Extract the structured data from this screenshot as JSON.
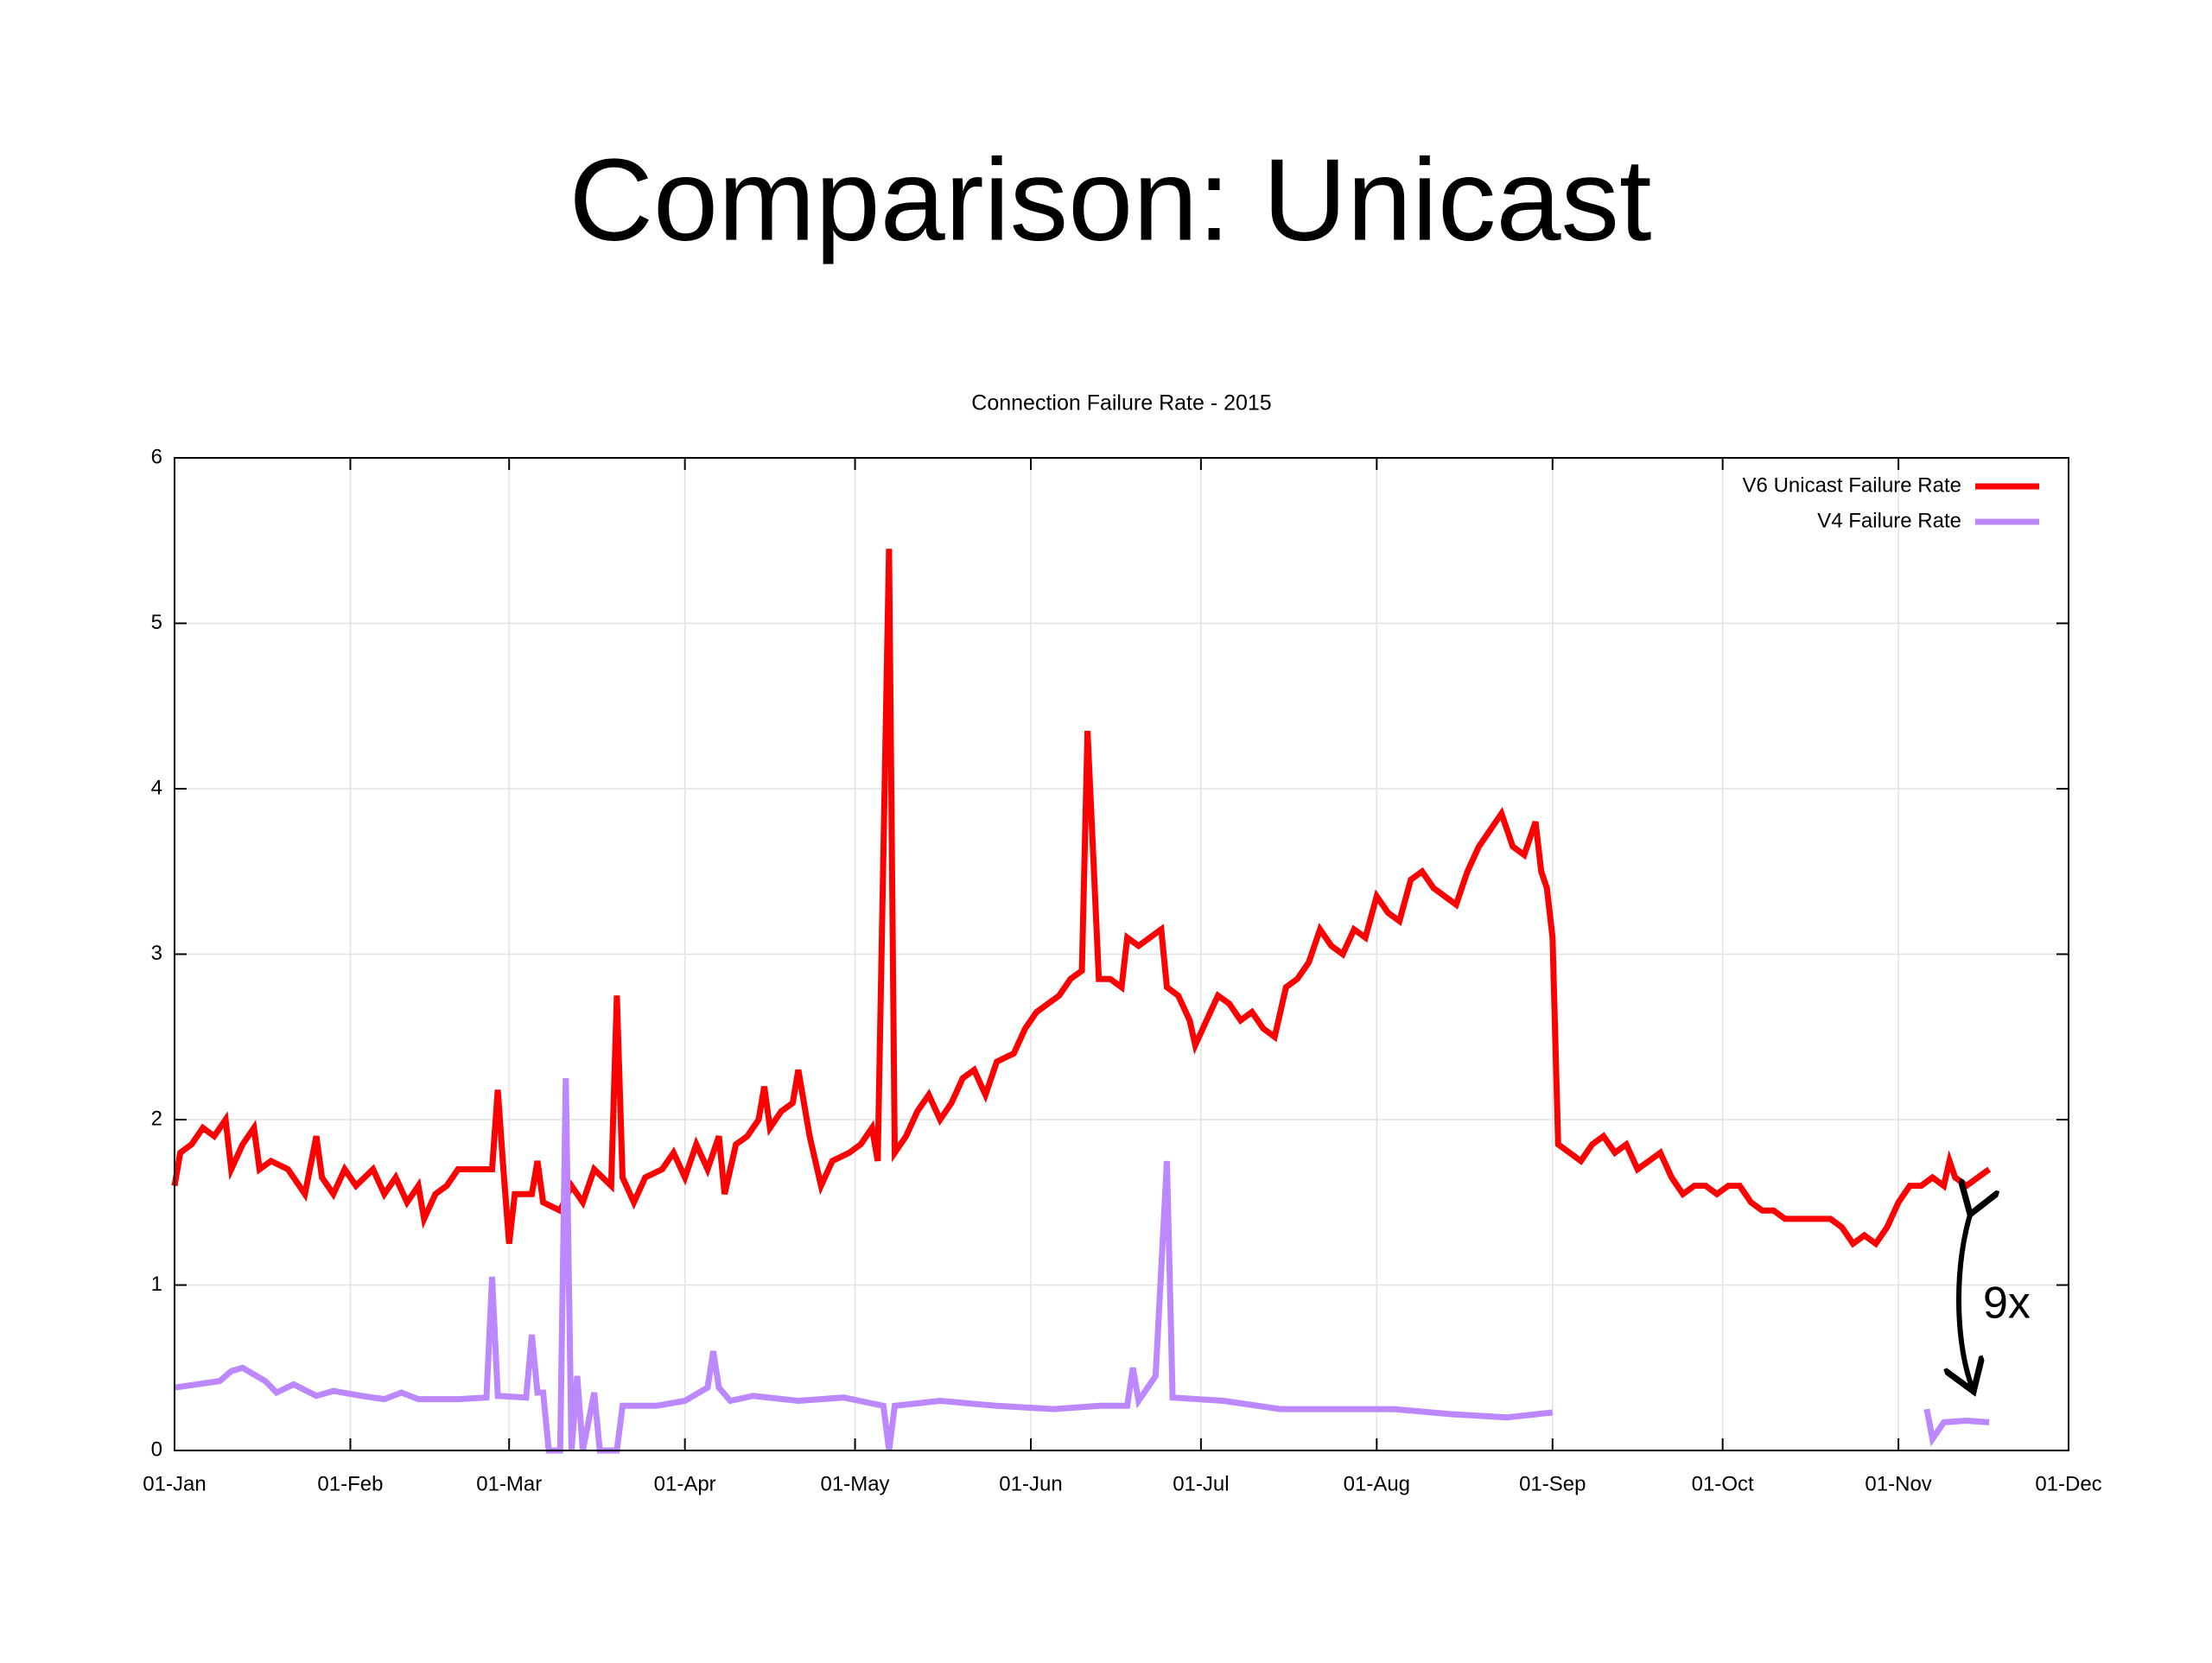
{
  "slide": {
    "title": "Comparison: Unicast"
  },
  "chart_data": {
    "type": "line",
    "title": "Connection Failure Rate - 2015",
    "xlim": [
      0,
      334
    ],
    "xticks": [
      {
        "value": 0,
        "label": "01-Jan"
      },
      {
        "value": 31,
        "label": "01-Feb"
      },
      {
        "value": 59,
        "label": "01-Mar"
      },
      {
        "value": 90,
        "label": "01-Apr"
      },
      {
        "value": 120,
        "label": "01-May"
      },
      {
        "value": 151,
        "label": "01-Jun"
      },
      {
        "value": 181,
        "label": "01-Jul"
      },
      {
        "value": 212,
        "label": "01-Aug"
      },
      {
        "value": 243,
        "label": "01-Sep"
      },
      {
        "value": 273,
        "label": "01-Oct"
      },
      {
        "value": 304,
        "label": "01-Nov"
      },
      {
        "value": 334,
        "label": "01-Dec"
      }
    ],
    "ylim": [
      0,
      6
    ],
    "yticks": [
      0,
      1,
      2,
      3,
      4,
      5,
      6
    ],
    "grid": true,
    "legend": "top-right",
    "annotation": "9x",
    "series": [
      {
        "name": "V6 Unicast Failure Rate",
        "color": "#ff0000",
        "x": [
          0,
          1,
          3,
          5,
          7,
          9,
          10,
          12,
          14,
          15,
          17,
          20,
          22,
          23,
          25,
          26,
          28,
          30,
          32,
          35,
          37,
          39,
          41,
          43,
          44,
          46,
          48,
          50,
          56,
          57,
          58,
          59,
          60,
          63,
          64,
          65,
          68,
          70,
          72,
          74,
          77,
          78,
          79,
          81,
          83,
          86,
          88,
          90,
          92,
          94,
          96,
          97,
          99,
          101,
          103,
          104,
          105,
          107,
          109,
          110,
          112,
          114,
          116,
          119,
          121,
          123,
          124,
          126,
          127,
          129,
          131,
          133,
          135,
          137,
          139,
          141,
          143,
          145,
          148,
          150,
          152,
          154,
          156,
          158,
          160,
          161,
          162,
          163,
          165,
          167,
          168,
          170,
          172,
          174,
          175,
          177,
          179,
          180,
          182,
          184,
          186,
          188,
          190,
          192,
          194,
          196,
          198,
          200,
          202,
          204,
          206,
          208,
          210,
          212,
          214,
          216,
          218,
          220,
          222,
          224,
          226,
          228,
          230,
          232,
          234,
          236,
          238,
          240,
          241,
          242,
          243,
          244,
          246,
          248,
          250,
          252,
          254,
          256,
          258,
          260,
          262,
          264,
          266,
          268,
          270,
          272,
          274,
          276,
          278,
          280,
          282,
          284,
          286,
          288,
          290,
          292,
          294,
          296,
          298,
          300,
          302,
          304,
          306,
          308,
          310,
          312,
          313,
          314,
          316,
          318,
          320
        ],
        "values": [
          1.6,
          1.8,
          1.85,
          1.95,
          1.9,
          2.0,
          1.7,
          1.85,
          1.95,
          1.7,
          1.75,
          1.7,
          1.6,
          1.55,
          1.9,
          1.65,
          1.55,
          1.7,
          1.6,
          1.7,
          1.55,
          1.65,
          1.5,
          1.6,
          1.4,
          1.55,
          1.6,
          1.7,
          1.7,
          2.18,
          1.7,
          1.25,
          1.55,
          1.55,
          1.75,
          1.5,
          1.45,
          1.6,
          1.5,
          1.7,
          1.6,
          2.75,
          1.65,
          1.5,
          1.65,
          1.7,
          1.8,
          1.65,
          1.85,
          1.7,
          1.9,
          1.55,
          1.85,
          1.9,
          2.0,
          2.2,
          1.95,
          2.05,
          2.1,
          2.3,
          1.9,
          1.6,
          1.75,
          1.8,
          1.85,
          1.95,
          1.75,
          5.45,
          1.8,
          1.9,
          2.05,
          2.15,
          2.0,
          2.1,
          2.25,
          2.3,
          2.15,
          2.35,
          2.4,
          2.55,
          2.65,
          2.7,
          2.75,
          2.85,
          2.9,
          4.35,
          3.6,
          2.85,
          2.85,
          2.8,
          3.1,
          3.05,
          3.1,
          3.15,
          2.8,
          2.75,
          2.6,
          2.45,
          2.6,
          2.75,
          2.7,
          2.6,
          2.65,
          2.55,
          2.5,
          2.8,
          2.85,
          2.95,
          3.15,
          3.05,
          3.0,
          3.15,
          3.1,
          3.35,
          3.25,
          3.2,
          3.45,
          3.5,
          3.4,
          3.35,
          3.3,
          3.5,
          3.65,
          3.75,
          3.85,
          3.65,
          3.6,
          3.8,
          3.5,
          3.4,
          3.1,
          1.85,
          1.8,
          1.75,
          1.85,
          1.9,
          1.8,
          1.85,
          1.7,
          1.75,
          1.8,
          1.65,
          1.55,
          1.6,
          1.6,
          1.55,
          1.6,
          1.6,
          1.5,
          1.45,
          1.45,
          1.4,
          1.4,
          1.4,
          1.4,
          1.4,
          1.35,
          1.25,
          1.3,
          1.25,
          1.35,
          1.5,
          1.6,
          1.6,
          1.65,
          1.6,
          1.75,
          1.65,
          1.6,
          1.65,
          1.7
        ]
      },
      {
        "name": "V4 Failure Rate",
        "color": "#bb88ff",
        "x": [
          0,
          8,
          10,
          12,
          16,
          18,
          21,
          25,
          28,
          33,
          37,
          40,
          43,
          50,
          55,
          56,
          57,
          62,
          63,
          64,
          65,
          66,
          68,
          69,
          70,
          71,
          72,
          74,
          75,
          78,
          79,
          85,
          90,
          94,
          95,
          96,
          98,
          102,
          110,
          118,
          125,
          126,
          127,
          135,
          145,
          155,
          163,
          168,
          169,
          170,
          173,
          175,
          176,
          185,
          195,
          205,
          215,
          225,
          235,
          243,
          270,
          309,
          310,
          312,
          316,
          320
        ],
        "values": [
          0.38,
          0.42,
          0.48,
          0.5,
          0.42,
          0.35,
          0.4,
          0.33,
          0.36,
          0.33,
          0.31,
          0.35,
          0.31,
          0.31,
          0.32,
          1.05,
          0.33,
          0.32,
          0.7,
          0.35,
          0.35,
          0,
          0,
          2.25,
          0,
          0.45,
          0,
          0.35,
          0,
          0,
          0.27,
          0.27,
          0.3,
          0.38,
          0.6,
          0.38,
          0.3,
          0.33,
          0.3,
          0.32,
          0.27,
          0,
          0.27,
          0.3,
          0.27,
          0.25,
          0.27,
          0.27,
          0.5,
          0.3,
          0.45,
          1.75,
          0.32,
          0.3,
          0.25,
          0.25,
          0.25,
          0.22,
          0.2,
          0.23,
          null,
          0.25,
          0.07,
          0.17,
          0.18,
          0.17
        ]
      }
    ]
  }
}
